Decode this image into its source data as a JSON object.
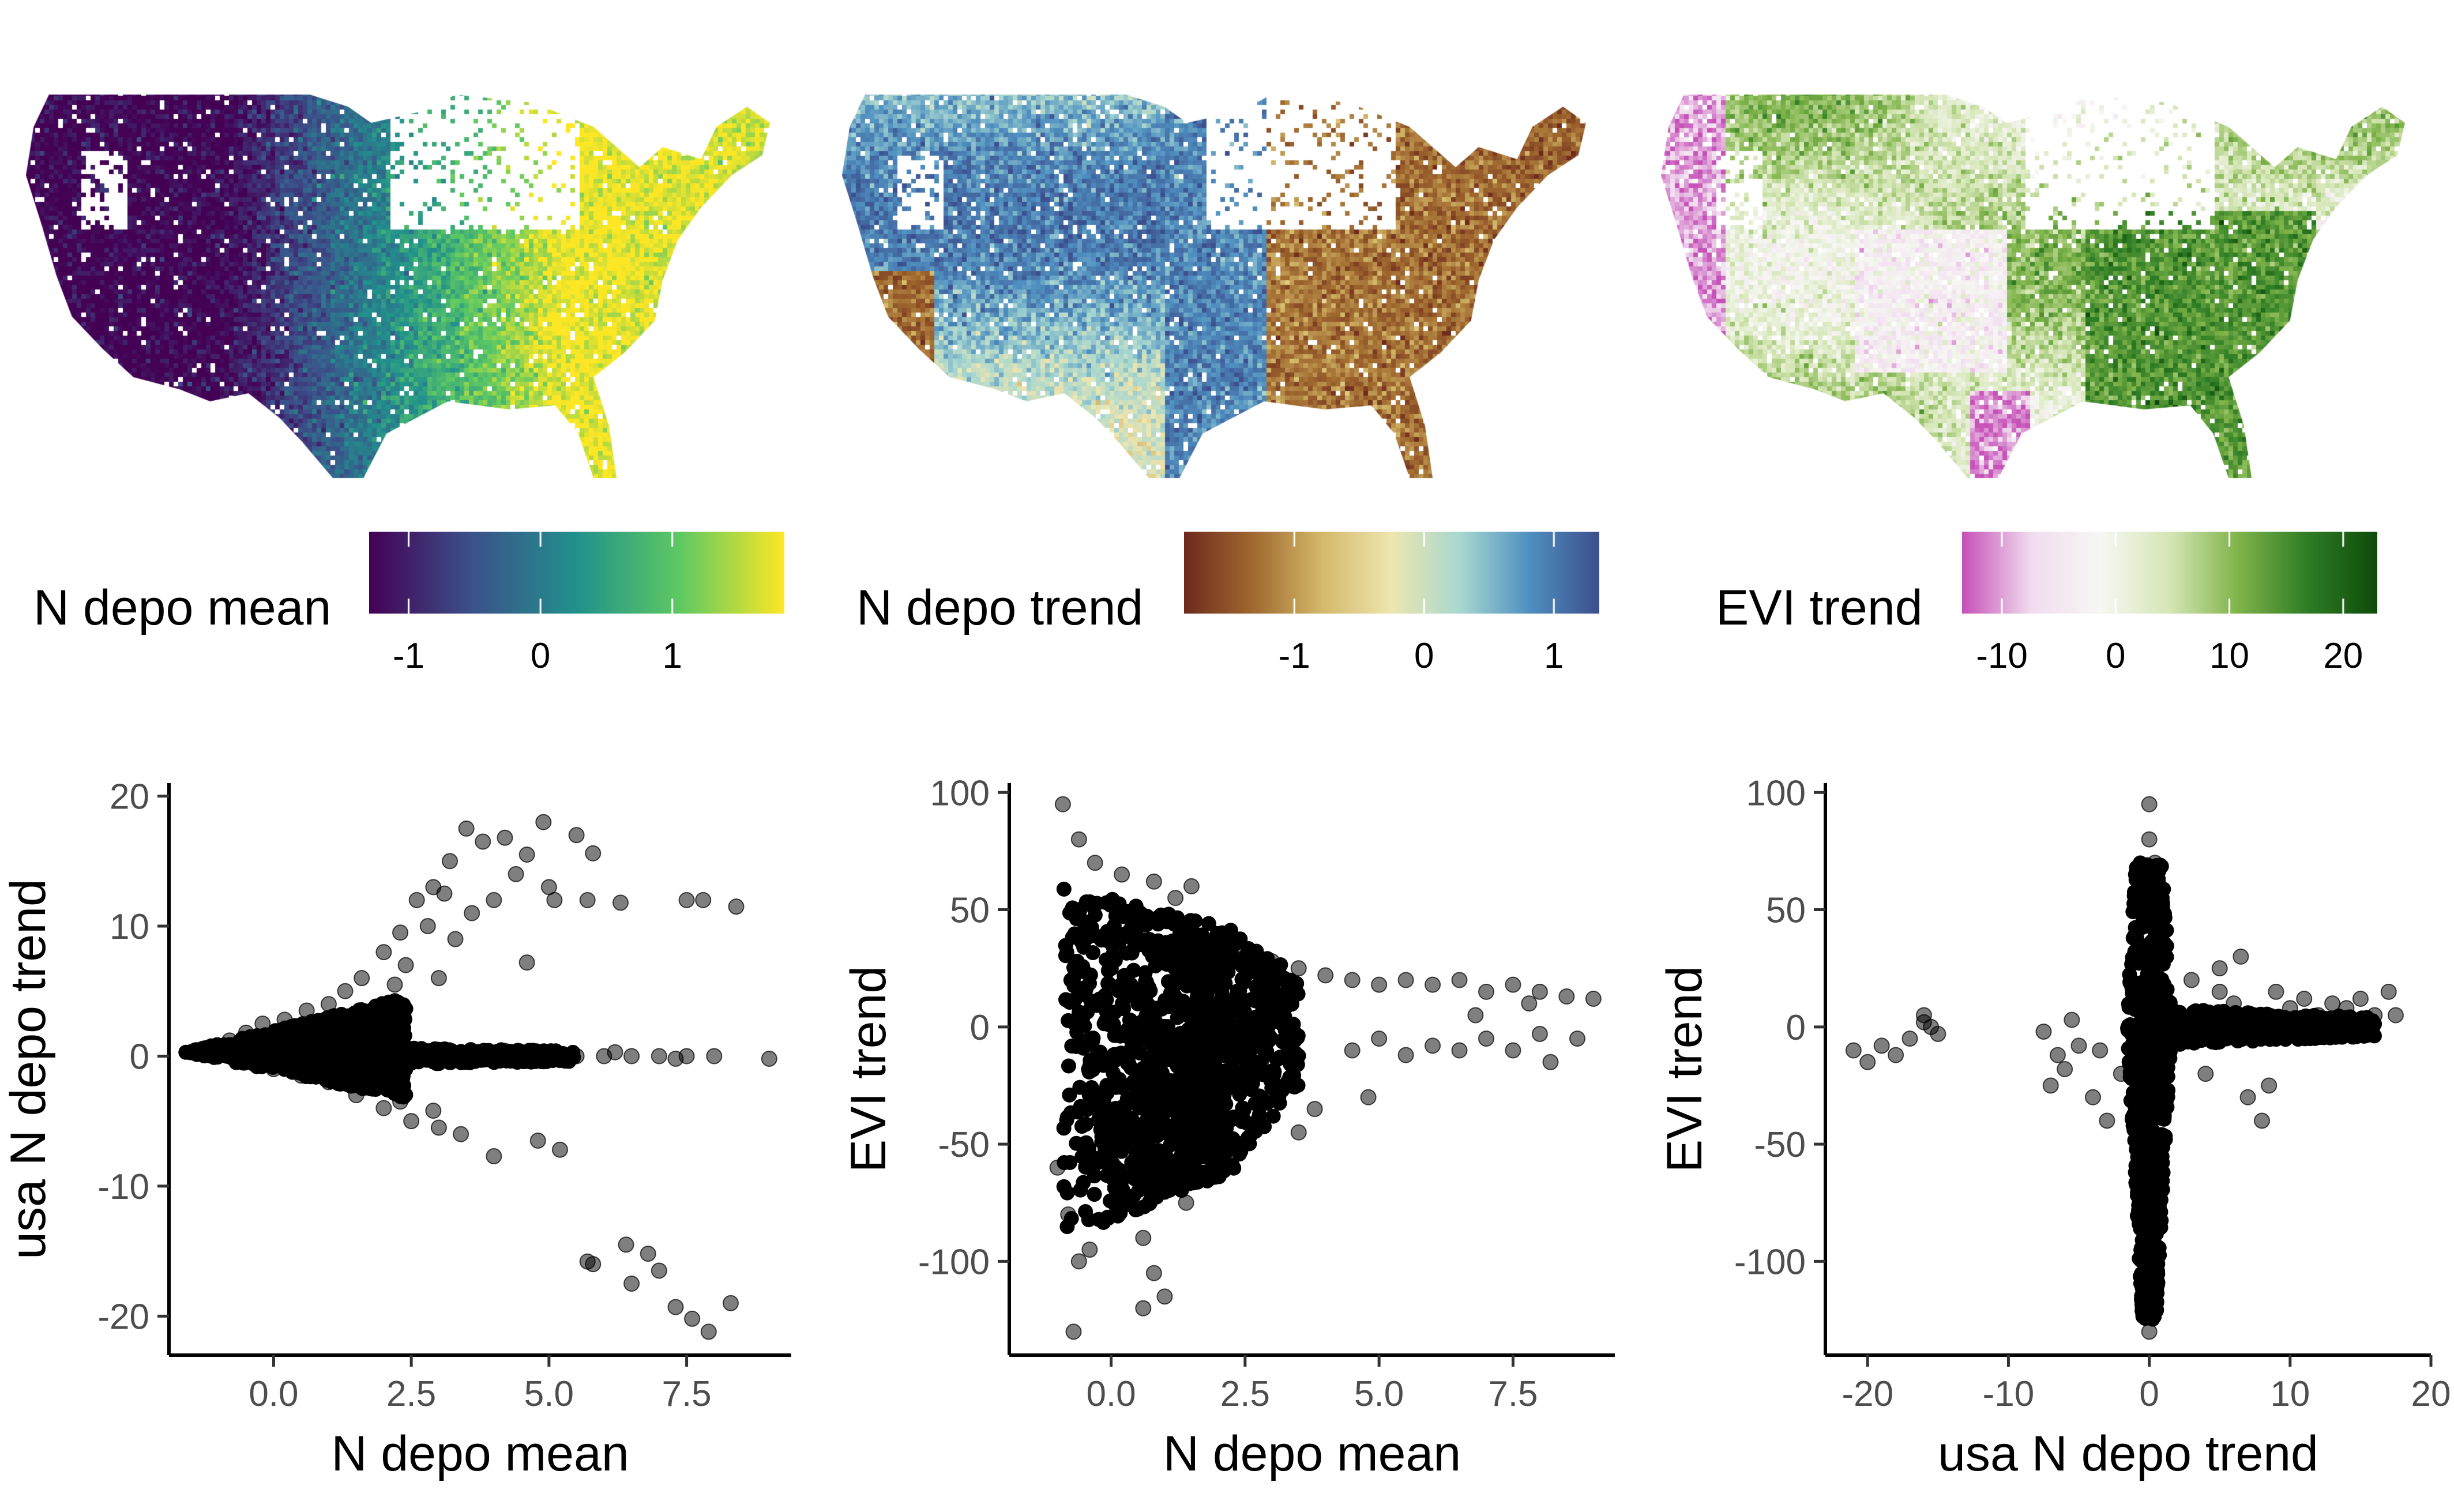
{
  "maps": [
    {
      "name": "map-n-depo-mean",
      "legend": {
        "title": "N depo mean",
        "ticks": [
          "-1",
          "0",
          "1"
        ],
        "tick_values": [
          -1,
          0,
          1
        ],
        "range": [
          -1.3,
          1.85
        ],
        "colors": [
          "#440154",
          "#3b528b",
          "#21918c",
          "#5ec962",
          "#fde725"
        ]
      }
    },
    {
      "name": "map-n-depo-trend",
      "legend": {
        "title": "N depo trend",
        "ticks": [
          "-1",
          "0",
          "1"
        ],
        "tick_values": [
          -1,
          0,
          1
        ],
        "range": [
          -1.85,
          1.35
        ],
        "colors": [
          "#6e2a1c",
          "#a0692f",
          "#d4b96a",
          "#eee6b0",
          "#a7d7d0",
          "#4f8fc0",
          "#3c4f8e"
        ]
      }
    },
    {
      "name": "map-evi-trend",
      "legend": {
        "title": "EVI trend",
        "ticks": [
          "-10",
          "0",
          "10",
          "20"
        ],
        "tick_values": [
          -10,
          0,
          10,
          20
        ],
        "range": [
          -13.5,
          23
        ],
        "colors": [
          "#c651b8",
          "#f1dcef",
          "#f7f7f4",
          "#d5e6b5",
          "#7fb34a",
          "#2e7d25",
          "#0e4b0a"
        ]
      }
    }
  ],
  "chart_data": [
    {
      "type": "scatter",
      "name": "scatter-mean-vs-trend",
      "xlabel": "N depo mean",
      "ylabel": "usa N depo trend",
      "xlim": [
        -1.9,
        9.4
      ],
      "ylim": [
        -23,
        21
      ],
      "xticks": [
        "0.0",
        "2.5",
        "5.0",
        "7.5"
      ],
      "xtick_values": [
        0,
        2.5,
        5,
        7.5
      ],
      "yticks": [
        "-20",
        "-10",
        "0",
        "10",
        "20"
      ],
      "ytick_values": [
        -20,
        -10,
        0,
        10,
        20
      ],
      "points": [
        [
          -1.5,
          0.3
        ],
        [
          -1.2,
          0.2
        ],
        [
          -1.0,
          0.5
        ],
        [
          -0.8,
          1.2
        ],
        [
          -0.5,
          1.8
        ],
        [
          -0.2,
          2.5
        ],
        [
          0.2,
          2.8
        ],
        [
          0.6,
          3.5
        ],
        [
          1.0,
          4.0
        ],
        [
          1.3,
          5.0
        ],
        [
          1.6,
          6.0
        ],
        [
          2.0,
          8.0
        ],
        [
          2.3,
          9.5
        ],
        [
          2.6,
          12.0
        ],
        [
          2.9,
          13.0
        ],
        [
          3.2,
          15.0
        ],
        [
          3.5,
          17.5
        ],
        [
          3.8,
          16.5
        ],
        [
          4.2,
          16.8
        ],
        [
          4.9,
          18.0
        ],
        [
          4.6,
          15.5
        ],
        [
          5.5,
          17.0
        ],
        [
          5.1,
          12.0
        ],
        [
          5.7,
          12.0
        ],
        [
          5.8,
          15.6
        ],
        [
          6.3,
          11.8
        ],
        [
          7.5,
          12.0
        ],
        [
          7.8,
          12.0
        ],
        [
          8.4,
          11.5
        ],
        [
          4.6,
          7.2
        ],
        [
          3.0,
          6.0
        ],
        [
          2.2,
          5.5
        ],
        [
          3.3,
          9.0
        ],
        [
          4.0,
          12.0
        ],
        [
          2.8,
          10.0
        ],
        [
          5.0,
          13.0
        ],
        [
          3.6,
          11.0
        ],
        [
          4.4,
          14.0
        ],
        [
          2.4,
          7.0
        ],
        [
          3.1,
          12.5
        ],
        [
          0.5,
          0.0
        ],
        [
          1.5,
          0.0
        ],
        [
          2.5,
          0.0
        ],
        [
          3.5,
          0.0
        ],
        [
          4.5,
          0.0
        ],
        [
          5.5,
          0.0
        ],
        [
          6.0,
          0.0
        ],
        [
          6.5,
          0.0
        ],
        [
          7.0,
          0.0
        ],
        [
          7.5,
          0.0
        ],
        [
          8.0,
          0.0
        ],
        [
          9.0,
          -0.2
        ],
        [
          4.2,
          0.4
        ],
        [
          5.2,
          -0.3
        ],
        [
          6.2,
          0.3
        ],
        [
          7.3,
          -0.2
        ],
        [
          0.0,
          -1.0
        ],
        [
          0.5,
          -1.5
        ],
        [
          1.0,
          -2.0
        ],
        [
          1.5,
          -3.0
        ],
        [
          2.0,
          -4.0
        ],
        [
          2.5,
          -5.0
        ],
        [
          2.9,
          -4.2
        ],
        [
          3.0,
          -5.5
        ],
        [
          3.4,
          -6.0
        ],
        [
          4.0,
          -7.7
        ],
        [
          4.8,
          -6.5
        ],
        [
          5.2,
          -7.2
        ],
        [
          5.7,
          -15.8
        ],
        [
          5.8,
          -16.0
        ],
        [
          6.4,
          -14.5
        ],
        [
          6.8,
          -15.2
        ],
        [
          7.0,
          -16.5
        ],
        [
          7.3,
          -19.3
        ],
        [
          7.6,
          -20.2
        ],
        [
          7.9,
          -21.2
        ],
        [
          8.3,
          -19.0
        ],
        [
          6.5,
          -17.5
        ],
        [
          2.3,
          -3.5
        ],
        [
          1.8,
          -2.5
        ]
      ],
      "dense_regions": [
        {
          "shape": "wedge",
          "x0": -1.6,
          "y0": 0.3,
          "x1": 2.4,
          "ytop": 4.5,
          "ybot": -3.2
        },
        {
          "shape": "band",
          "x0": 0.0,
          "x1": 5.5,
          "ytop": 0.8,
          "ybot": -0.8
        }
      ]
    },
    {
      "type": "scatter",
      "name": "scatter-mean-vs-evi",
      "xlabel": "N depo mean",
      "ylabel": "EVI trend",
      "xlim": [
        -1.9,
        9.4
      ],
      "ylim": [
        -140,
        104
      ],
      "xticks": [
        "0.0",
        "2.5",
        "5.0",
        "7.5"
      ],
      "xtick_values": [
        0,
        2.5,
        5,
        7.5
      ],
      "yticks": [
        "100",
        "50",
        "0",
        "-50",
        "-100"
      ],
      "ytick_values": [
        100,
        50,
        0,
        -50,
        -100
      ],
      "points": [
        [
          -0.9,
          95
        ],
        [
          -0.6,
          80
        ],
        [
          -0.3,
          70
        ],
        [
          0.2,
          65
        ],
        [
          0.8,
          62
        ],
        [
          1.2,
          55
        ],
        [
          1.5,
          60
        ],
        [
          -1.0,
          -60
        ],
        [
          -0.8,
          -80
        ],
        [
          -0.6,
          -100
        ],
        [
          -0.7,
          -130
        ],
        [
          -0.4,
          -95
        ],
        [
          0.6,
          -90
        ],
        [
          0.8,
          -105
        ],
        [
          0.6,
          -120
        ],
        [
          1.0,
          -115
        ],
        [
          1.4,
          -75
        ],
        [
          2.0,
          -50
        ],
        [
          2.2,
          -55
        ],
        [
          3.5,
          -45
        ],
        [
          3.8,
          -35
        ],
        [
          2.5,
          30
        ],
        [
          3.0,
          28
        ],
        [
          3.5,
          25
        ],
        [
          4.0,
          22
        ],
        [
          4.5,
          20
        ],
        [
          5.0,
          18
        ],
        [
          5.5,
          20
        ],
        [
          6.0,
          18
        ],
        [
          6.5,
          20
        ],
        [
          7.0,
          15
        ],
        [
          7.5,
          18
        ],
        [
          8.0,
          15
        ],
        [
          8.5,
          13
        ],
        [
          9.0,
          12
        ],
        [
          4.5,
          -10
        ],
        [
          5.0,
          -5
        ],
        [
          5.5,
          -12
        ],
        [
          6.0,
          -8
        ],
        [
          6.5,
          -10
        ],
        [
          7.0,
          -5
        ],
        [
          7.5,
          -10
        ],
        [
          8.0,
          -3
        ],
        [
          8.7,
          -5
        ],
        [
          4.8,
          -30
        ],
        [
          2.8,
          -15
        ],
        [
          3.2,
          8
        ],
        [
          6.8,
          5
        ],
        [
          7.8,
          10
        ],
        [
          8.2,
          -15
        ]
      ],
      "dense_regions": [
        {
          "shape": "wedge",
          "x0": -0.9,
          "y0": 0,
          "x1": 2.2,
          "ytop": 60,
          "ybot": -90,
          "xend": 3.5,
          "yendtop": 22,
          "yendbot": -25
        }
      ]
    },
    {
      "type": "scatter",
      "name": "scatter-trend-vs-evi",
      "xlabel": "usa N depo trend",
      "ylabel": "EVI trend",
      "xlim": [
        -23,
        20
      ],
      "ylim": [
        -140,
        104
      ],
      "xticks": [
        "-20",
        "-10",
        "0",
        "10",
        "20"
      ],
      "xtick_values": [
        -20,
        -10,
        0,
        10,
        20
      ],
      "yticks": [
        "100",
        "50",
        "0",
        "-50",
        "-100"
      ],
      "ytick_values": [
        100,
        50,
        0,
        -50,
        -100
      ],
      "points": [
        [
          -21,
          -10
        ],
        [
          -20,
          -15
        ],
        [
          -19,
          -8
        ],
        [
          -18,
          -12
        ],
        [
          -17,
          -5
        ],
        [
          -16,
          2
        ],
        [
          -16,
          5
        ],
        [
          -15.5,
          0
        ],
        [
          -15,
          -3
        ],
        [
          -7.5,
          -2
        ],
        [
          -7,
          -25
        ],
        [
          -6.5,
          -12
        ],
        [
          -6,
          -18
        ],
        [
          -5.5,
          3
        ],
        [
          -5,
          -8
        ],
        [
          -4,
          -30
        ],
        [
          -3.5,
          -10
        ],
        [
          -3,
          -40
        ],
        [
          -2,
          -20
        ],
        [
          0,
          95
        ],
        [
          0,
          80
        ],
        [
          0,
          -130
        ],
        [
          0,
          -120
        ],
        [
          0.3,
          -110
        ],
        [
          -0.2,
          -100
        ],
        [
          0.4,
          70
        ],
        [
          3,
          20
        ],
        [
          4,
          -20
        ],
        [
          5,
          15
        ],
        [
          6,
          10
        ],
        [
          7,
          -30
        ],
        [
          8,
          -40
        ],
        [
          9,
          15
        ],
        [
          10,
          8
        ],
        [
          11,
          12
        ],
        [
          12,
          5
        ],
        [
          13,
          10
        ],
        [
          14,
          8
        ],
        [
          15,
          12
        ],
        [
          16,
          5
        ],
        [
          17,
          15
        ],
        [
          17.5,
          5
        ],
        [
          6.5,
          30
        ],
        [
          5,
          25
        ],
        [
          8.5,
          -25
        ]
      ],
      "dense_regions": [
        {
          "shape": "spike",
          "cx": 0.0,
          "ytop": 70,
          "ybot": -125,
          "halfw": 1.6
        },
        {
          "shape": "band",
          "x0": 0.0,
          "x1": 16.0,
          "ytop": 8,
          "ybot": -8
        }
      ]
    }
  ]
}
